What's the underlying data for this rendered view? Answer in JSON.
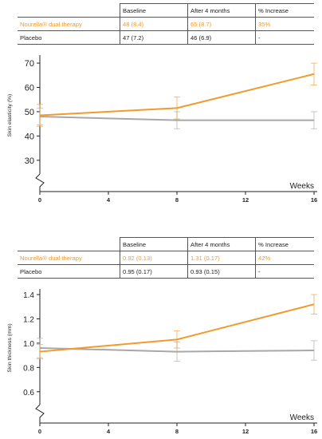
{
  "colors": {
    "treatment": "#f29a2e",
    "placebo": "#a8a8a8",
    "axis": "#222222"
  },
  "table1": {
    "headers": [
      "",
      "Baseline",
      "After 4 months",
      "% Increase"
    ],
    "rows": [
      [
        "Nourella® dual therapy",
        "48 (8.4)",
        "65 (8.7)",
        "35%"
      ],
      [
        "Placebo",
        "47 (7.2)",
        "46 (6.9)",
        "-"
      ]
    ]
  },
  "table2": {
    "headers": [
      "",
      "Baseline",
      "After 4 months",
      "% Increase"
    ],
    "rows": [
      [
        "Nourella® dual therapy",
        "0.92 (0.13)",
        "1.31 (0.17)",
        "42%"
      ],
      [
        "Placebo",
        "0.95 (0.17)",
        "0.93 (0.15)",
        "-"
      ]
    ]
  },
  "chart_data": [
    {
      "type": "line",
      "ylabel": "Skin elasticity (%)",
      "xlabel": "Weeks",
      "xticks": [
        0,
        4,
        8,
        12,
        16
      ],
      "yticks": [
        30,
        40,
        50,
        60,
        70
      ],
      "ylim": [
        25,
        72
      ],
      "xlim": [
        0,
        16
      ],
      "axis_break": true,
      "grid": false,
      "series": [
        {
          "color": "#f29a2e",
          "x": [
            0,
            8,
            16
          ],
          "y": [
            48.5,
            51.5,
            65.5
          ],
          "err": [
            4.5,
            4.5,
            4.5
          ]
        },
        {
          "color": "#a8a8a8",
          "x": [
            0,
            8,
            16
          ],
          "y": [
            48,
            46.5,
            46.5
          ],
          "err": [
            3.5,
            3.5,
            3.5
          ]
        }
      ]
    },
    {
      "type": "line",
      "ylabel": "Skin thickness (mm)",
      "xlabel": "Weeks",
      "xticks": [
        0,
        4,
        8,
        12,
        16
      ],
      "yticks": [
        0.6,
        0.8,
        1.0,
        1.2,
        1.4
      ],
      "ylim": [
        0.5,
        1.42
      ],
      "xlim": [
        0,
        16
      ],
      "axis_break": true,
      "grid": false,
      "series": [
        {
          "color": "#f29a2e",
          "x": [
            0,
            8,
            16
          ],
          "y": [
            0.93,
            1.03,
            1.32
          ],
          "err": [
            0.06,
            0.07,
            0.08
          ]
        },
        {
          "color": "#a8a8a8",
          "x": [
            0,
            8,
            16
          ],
          "y": [
            0.96,
            0.93,
            0.94
          ],
          "err": [
            0.08,
            0.08,
            0.08
          ]
        }
      ]
    }
  ]
}
